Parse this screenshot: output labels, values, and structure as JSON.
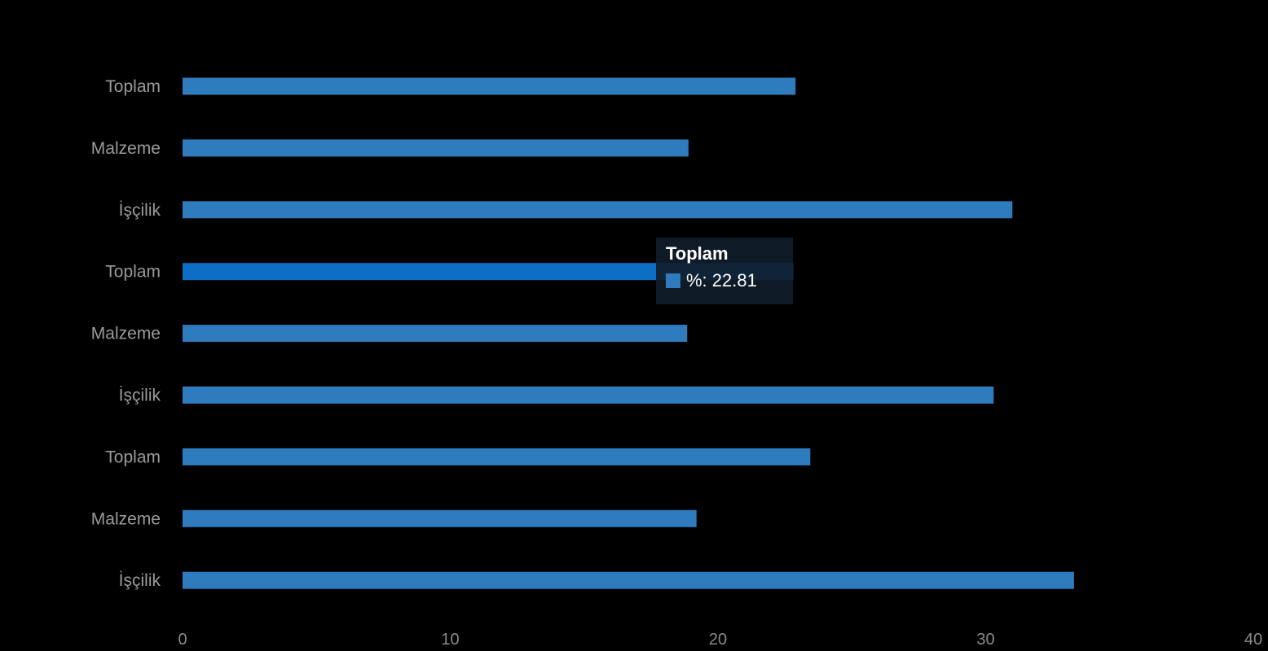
{
  "chart_data": {
    "type": "bar",
    "orientation": "horizontal",
    "categories": [
      "Toplam",
      "Malzeme",
      "İşçilik",
      "Toplam",
      "Malzeme",
      "İşçilik",
      "Toplam",
      "Malzeme",
      "İşçilik"
    ],
    "values": [
      22.9,
      18.9,
      31.0,
      22.81,
      18.85,
      30.3,
      23.45,
      19.2,
      33.3
    ],
    "highlight_index": 3,
    "xlim": [
      0,
      40
    ],
    "xticks": [
      "0",
      "10",
      "20",
      "30",
      "40"
    ],
    "grid": false,
    "colors": {
      "bar": "#2e7bbd",
      "bar_highlight": "#0d6ec6",
      "background": "#000000"
    }
  },
  "tooltip": {
    "title": "Toplam",
    "label": "%: 22.81"
  }
}
